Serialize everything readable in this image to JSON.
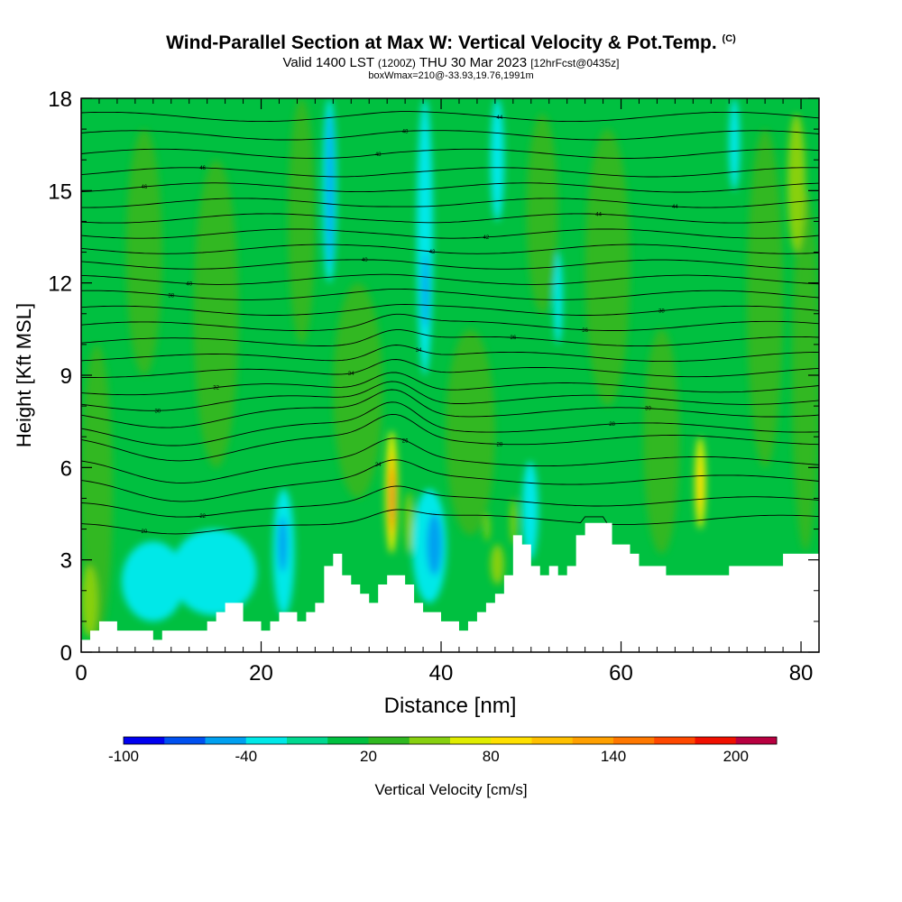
{
  "title": {
    "main": "Wind-Parallel Section at Max W: Vertical Velocity & Pot.Temp.",
    "copyright": "(C)",
    "valid_prefix": "Valid 1400 LST",
    "valid_utc": "(1200Z)",
    "valid_date": "THU 30 Mar 2023",
    "forecast_info": "[12hrFcst@0435z]",
    "box_info": "boxWmax=210@-33.93,19.76,1991m"
  },
  "chart_data": {
    "type": "heatmap",
    "xlabel": "Distance [nm]",
    "ylabel": "Height [Kft MSL]",
    "xlim": [
      0,
      82
    ],
    "ylim": [
      0,
      18
    ],
    "x_ticks": [
      0,
      20,
      40,
      60,
      80
    ],
    "y_ticks": [
      0,
      3,
      6,
      9,
      12,
      15,
      18
    ],
    "colorbar": {
      "label": "Vertical Velocity [cm/s]",
      "tick_labels": [
        {
          "label": "-100",
          "value": -100
        },
        {
          "label": "-40",
          "value": -40
        },
        {
          "label": "20",
          "value": 20
        },
        {
          "label": "80",
          "value": 80
        },
        {
          "label": "140",
          "value": 140
        },
        {
          "label": "200",
          "value": 200
        }
      ],
      "levels": [
        -100,
        -80,
        -60,
        -40,
        -20,
        0,
        20,
        40,
        60,
        80,
        100,
        120,
        140,
        160,
        180,
        200,
        220
      ],
      "colors": [
        "#0000f0",
        "#0050f0",
        "#00a0f0",
        "#00e8e8",
        "#00d890",
        "#00c040",
        "#30b820",
        "#88d010",
        "#e0ec00",
        "#ffe000",
        "#ffc000",
        "#ffa000",
        "#ff7800",
        "#ff4800",
        "#f01000",
        "#b80040"
      ]
    },
    "terrain_kft": {
      "x": [
        0,
        1,
        2,
        4,
        6,
        8,
        9,
        10,
        12,
        14,
        15,
        16,
        17,
        18,
        19,
        20,
        21,
        22,
        23,
        24,
        25,
        26,
        27,
        28,
        29,
        30,
        31,
        32,
        33,
        34,
        36,
        37,
        38,
        40,
        42,
        43,
        44,
        45,
        46,
        47,
        48,
        49,
        50,
        51,
        52,
        53,
        54,
        55,
        56,
        57,
        58,
        59,
        60,
        61,
        62,
        63,
        64,
        65,
        66,
        68,
        70,
        71,
        72,
        73,
        74,
        76,
        78,
        80,
        82
      ],
      "y": [
        0.4,
        0.7,
        1.0,
        0.7,
        0.7,
        0.4,
        0.7,
        0.7,
        0.7,
        1.0,
        1.3,
        1.6,
        1.6,
        1.0,
        1.0,
        0.7,
        1.0,
        1.3,
        1.3,
        1.0,
        1.3,
        1.6,
        2.8,
        3.2,
        2.5,
        2.2,
        1.9,
        1.6,
        2.2,
        2.5,
        2.2,
        1.6,
        1.3,
        1.0,
        0.7,
        1.0,
        1.3,
        1.6,
        1.9,
        2.5,
        3.8,
        3.5,
        2.8,
        2.5,
        2.8,
        2.5,
        2.8,
        3.8,
        4.2,
        4.2,
        4.2,
        3.5,
        3.5,
        3.2,
        2.8,
        2.8,
        2.8,
        2.5,
        2.5,
        2.5,
        2.5,
        2.5,
        2.8,
        2.8,
        2.8,
        2.8,
        3.2,
        3.2,
        3.2
      ]
    },
    "vv_cells": [
      {
        "x": [
          33.8,
          35.2
        ],
        "y": [
          3.2,
          7.2
        ],
        "w": 60
      },
      {
        "x": [
          34.2,
          34.9
        ],
        "y": [
          3.7,
          6.5
        ],
        "w": 100
      },
      {
        "x": [
          34.4,
          34.75
        ],
        "y": [
          4.0,
          6.0
        ],
        "w": 160
      },
      {
        "x": [
          34.5,
          34.7
        ],
        "y": [
          4.3,
          5.6
        ],
        "w": 200
      },
      {
        "x": [
          68.2,
          69.4
        ],
        "y": [
          4.0,
          7.0
        ],
        "w": 60
      },
      {
        "x": [
          68.5,
          69.1
        ],
        "y": [
          4.6,
          6.2
        ],
        "w": 80
      },
      {
        "x": [
          36.0,
          36.9
        ],
        "y": [
          3.2,
          5.2
        ],
        "w": 40
      },
      {
        "x": [
          47.7,
          48.4
        ],
        "y": [
          3.5,
          5.0
        ],
        "w": 40
      },
      {
        "x": [
          44.8,
          45.4
        ],
        "y": [
          3.6,
          4.5
        ],
        "w": 40
      },
      {
        "x": [
          36.8,
          40.6
        ],
        "y": [
          1.6,
          5.3
        ],
        "w": -30
      },
      {
        "x": [
          38.4,
          40.1
        ],
        "y": [
          2.5,
          4.5
        ],
        "w": -50
      },
      {
        "x": [
          21.3,
          23.7
        ],
        "y": [
          1.2,
          5.3
        ],
        "w": -30
      },
      {
        "x": [
          21.9,
          22.9
        ],
        "y": [
          2.6,
          4.4
        ],
        "w": -50
      },
      {
        "x": [
          4.5,
          11.5
        ],
        "y": [
          1.0,
          3.6
        ],
        "w": -30
      },
      {
        "x": [
          10.0,
          19.5
        ],
        "y": [
          1.2,
          4.0
        ],
        "w": -30
      },
      {
        "x": [
          26.8,
          28.4
        ],
        "y": [
          12.0,
          18.0
        ],
        "w": -30
      },
      {
        "x": [
          27.3,
          28.0
        ],
        "y": [
          12.5,
          17.6
        ],
        "w": -50
      },
      {
        "x": [
          37.3,
          39.1
        ],
        "y": [
          9.0,
          18.0
        ],
        "w": -30
      },
      {
        "x": [
          37.9,
          38.6
        ],
        "y": [
          10.5,
          13.0
        ],
        "w": -50
      },
      {
        "x": [
          49.0,
          50.8
        ],
        "y": [
          3.0,
          6.2
        ],
        "w": -30
      },
      {
        "x": [
          45.5,
          47.0
        ],
        "y": [
          14.0,
          18.0
        ],
        "w": -30
      },
      {
        "x": [
          72.0,
          73.2
        ],
        "y": [
          15.0,
          18.0
        ],
        "w": -30
      },
      {
        "x": [
          52.5,
          53.5
        ],
        "y": [
          10.0,
          13.0
        ],
        "w": -30
      },
      {
        "x": [
          28.0,
          33.5
        ],
        "y": [
          5.0,
          12.0
        ],
        "w": 20
      },
      {
        "x": [
          40.5,
          46.0
        ],
        "y": [
          3.8,
          10.5
        ],
        "w": 20
      },
      {
        "x": [
          0.0,
          3.5
        ],
        "y": [
          0.4,
          10.0
        ],
        "w": 20
      },
      {
        "x": [
          12.5,
          17.5
        ],
        "y": [
          6.0,
          16.0
        ],
        "w": 20
      },
      {
        "x": [
          56.0,
          61.0
        ],
        "y": [
          8.0,
          17.0
        ],
        "w": 20
      },
      {
        "x": [
          62.5,
          66.5
        ],
        "y": [
          3.2,
          10.5
        ],
        "w": 20
      },
      {
        "x": [
          74.0,
          78.0
        ],
        "y": [
          6.0,
          17.0
        ],
        "w": 20
      },
      {
        "x": [
          79.0,
          82.0
        ],
        "y": [
          3.3,
          15.0
        ],
        "w": 20
      },
      {
        "x": [
          5.0,
          9.0
        ],
        "y": [
          9.0,
          17.0
        ],
        "w": 20
      },
      {
        "x": [
          23.0,
          26.0
        ],
        "y": [
          10.0,
          18.0
        ],
        "w": 20
      },
      {
        "x": [
          49.5,
          53.0
        ],
        "y": [
          11.0,
          17.5
        ],
        "w": 20
      },
      {
        "x": [
          0.0,
          1.8
        ],
        "y": [
          0.5,
          2.8
        ],
        "w": 40
      },
      {
        "x": [
          78.5,
          80.5
        ],
        "y": [
          13.0,
          17.5
        ],
        "w": 40
      },
      {
        "x": [
          45.5,
          47.0
        ],
        "y": [
          2.2,
          3.5
        ],
        "w": 40
      }
    ],
    "theta_contours": [
      {
        "label": "20",
        "base": 4.3,
        "dip": 1.5
      },
      {
        "label": "22",
        "base": 4.9,
        "dip": 1.5
      },
      {
        "label": "24",
        "base": 5.6,
        "dip": 1.8
      },
      {
        "label": "26",
        "base": 6.2,
        "dip": 1.6
      },
      {
        "label": "28",
        "base": 6.9,
        "dip": 1.4
      },
      {
        "label": "28",
        "base": 7.3,
        "dip": 1.1
      },
      {
        "label": "30",
        "base": 7.8,
        "dip": 0.9
      },
      {
        "label": "30",
        "base": 8.2,
        "dip": 0.6
      },
      {
        "label": "32",
        "base": 8.6,
        "dip": 0.4
      },
      {
        "label": "34",
        "base": 9.1,
        "dip": 0.3
      },
      {
        "label": "34",
        "base": 9.6,
        "dip": 0.2
      },
      {
        "label": "36",
        "base": 10.1,
        "dip": 0.1
      },
      {
        "label": "36",
        "base": 10.6,
        "dip": 0.05
      },
      {
        "label": "38",
        "base": 11.1,
        "dip": 0.0
      },
      {
        "label": "38",
        "base": 11.6,
        "dip": 0.0
      },
      {
        "label": "40",
        "base": 12.1,
        "dip": 0.0
      },
      {
        "label": "40",
        "base": 12.6,
        "dip": 0.0
      },
      {
        "label": "42",
        "base": 13.1,
        "dip": 0.0
      },
      {
        "label": "42",
        "base": 13.6,
        "dip": 0.0
      },
      {
        "label": "44",
        "base": 14.1,
        "dip": 0.0
      },
      {
        "label": "44",
        "base": 14.6,
        "dip": 0.0
      },
      {
        "label": "46",
        "base": 15.1,
        "dip": 0.0
      },
      {
        "label": "46",
        "base": 15.6,
        "dip": 0.0
      },
      {
        "label": "48",
        "base": 16.2,
        "dip": 0.0
      },
      {
        "label": "48",
        "base": 16.8,
        "dip": 0.0
      },
      {
        "label": "44",
        "base": 17.4,
        "dip": 0.0
      }
    ]
  }
}
